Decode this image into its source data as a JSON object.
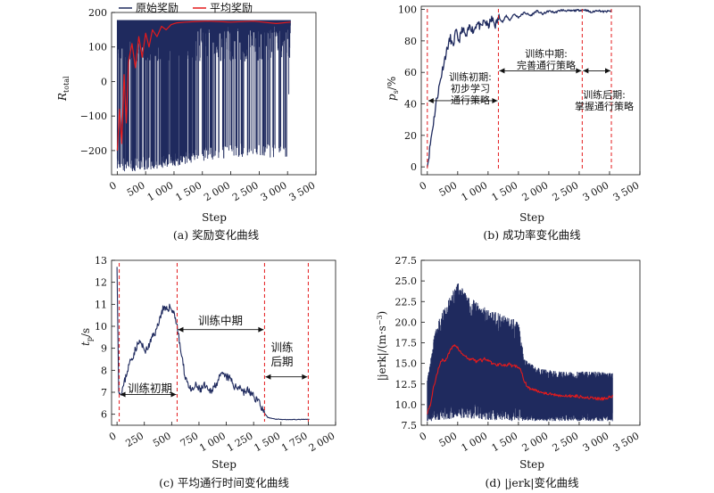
{
  "chart_data": [
    {
      "id": "a",
      "type": "line",
      "caption": "(a) 奖励变化曲线",
      "xlabel": "Step",
      "ylabel_main": "R",
      "ylabel_sub": "total",
      "xlim": [
        -100,
        3500
      ],
      "ylim": [
        -270,
        200
      ],
      "xticks": [
        0,
        500,
        1000,
        1500,
        2000,
        2500,
        3000,
        3500
      ],
      "xtick_labels": [
        "0",
        "500",
        "1 000",
        "1 500",
        "2 000",
        "2 500",
        "3 000",
        "3 500"
      ],
      "yticks": [
        -200,
        -100,
        0,
        100,
        200
      ],
      "ytick_labels": [
        "−200",
        "−100",
        "0",
        "100",
        "200"
      ],
      "legend_position": "top",
      "legend": [
        "原始奖励",
        "平均奖励"
      ],
      "series": [
        {
          "name": "原始奖励",
          "color": "#1f2a5e",
          "envelope": [
            [
              0,
              -260,
              178
            ],
            [
              300,
              -260,
              178
            ],
            [
              600,
              -255,
              178
            ],
            [
              900,
              -250,
              178
            ],
            [
              1200,
              -240,
              178
            ],
            [
              1500,
              -230,
              178
            ],
            [
              2000,
              -220,
              178
            ],
            [
              2500,
              -220,
              178
            ],
            [
              3000,
              -220,
              178
            ],
            [
              3050,
              150,
              178
            ]
          ]
        },
        {
          "name": "平均奖励",
          "color": "#e41a1c",
          "points": [
            [
              0,
              -200
            ],
            [
              40,
              -80
            ],
            [
              80,
              -180
            ],
            [
              120,
              20
            ],
            [
              160,
              -120
            ],
            [
              200,
              60
            ],
            [
              260,
              110
            ],
            [
              320,
              40
            ],
            [
              380,
              130
            ],
            [
              440,
              70
            ],
            [
              500,
              140
            ],
            [
              560,
              100
            ],
            [
              620,
              150
            ],
            [
              700,
              130
            ],
            [
              780,
              160
            ],
            [
              860,
              150
            ],
            [
              950,
              165
            ],
            [
              1050,
              170
            ],
            [
              1200,
              172
            ],
            [
              1400,
              174
            ],
            [
              1600,
              175
            ],
            [
              2000,
              172
            ],
            [
              2400,
              175
            ],
            [
              2800,
              168
            ],
            [
              3050,
              172
            ]
          ]
        }
      ]
    },
    {
      "id": "b",
      "type": "line",
      "caption": "(b) 成功率变化曲线",
      "xlabel": "Step",
      "ylabel_main": "p",
      "ylabel_sub": "s",
      "ylabel_unit": "/%",
      "xlim": [
        -100,
        3500
      ],
      "ylim": [
        -5,
        102
      ],
      "xticks": [
        0,
        500,
        1000,
        1500,
        2000,
        2500,
        3000,
        3500
      ],
      "xtick_labels": [
        "0",
        "500",
        "1 000",
        "1 500",
        "2 000",
        "2 500",
        "3 000",
        "3 500"
      ],
      "yticks": [
        0,
        20,
        40,
        60,
        80,
        100
      ],
      "ytick_labels": [
        "0",
        "20",
        "40",
        "60",
        "80",
        "100"
      ],
      "phase_lines": [
        0,
        1170,
        2550,
        3030
      ],
      "annotations": {
        "early": [
          "训练初期:",
          "初步学习",
          "通行策略"
        ],
        "mid": [
          "训练中期:",
          "完善通行策略"
        ],
        "late": [
          "训练后期:",
          "掌握通行策略"
        ]
      },
      "series": [
        {
          "name": "",
          "color": "#1f2a5e",
          "points": [
            [
              0,
              0
            ],
            [
              30,
              8
            ],
            [
              60,
              18
            ],
            [
              100,
              28
            ],
            [
              150,
              42
            ],
            [
              200,
              52
            ],
            [
              260,
              64
            ],
            [
              320,
              74
            ],
            [
              380,
              82
            ],
            [
              420,
              76
            ],
            [
              470,
              86
            ],
            [
              520,
              80
            ],
            [
              580,
              88
            ],
            [
              640,
              82
            ],
            [
              700,
              90
            ],
            [
              760,
              86
            ],
            [
              820,
              92
            ],
            [
              880,
              88
            ],
            [
              940,
              93
            ],
            [
              1000,
              89
            ],
            [
              1060,
              94
            ],
            [
              1120,
              90
            ],
            [
              1180,
              95
            ],
            [
              1240,
              92
            ],
            [
              1300,
              96
            ],
            [
              1360,
              93
            ],
            [
              1420,
              97
            ],
            [
              1500,
              95
            ],
            [
              1600,
              98
            ],
            [
              1700,
              96
            ],
            [
              1800,
              99
            ],
            [
              1900,
              97
            ],
            [
              2000,
              99
            ],
            [
              2100,
              98
            ],
            [
              2200,
              99.5
            ],
            [
              2350,
              99
            ],
            [
              2500,
              99.5
            ],
            [
              2600,
              99.8
            ],
            [
              2700,
              98
            ],
            [
              2800,
              99.5
            ],
            [
              2900,
              98.5
            ],
            [
              3030,
              99
            ]
          ]
        }
      ]
    },
    {
      "id": "c",
      "type": "line",
      "caption": "(c) 平均通行时间变化曲线",
      "xlabel": "Step",
      "ylabel_main": "t",
      "ylabel_sub": "p",
      "ylabel_unit": "/s",
      "xlim": [
        -50,
        2000
      ],
      "ylim": [
        5.5,
        13
      ],
      "xticks": [
        0,
        250,
        500,
        750,
        1000,
        1250,
        1500,
        1750,
        2000
      ],
      "xtick_labels": [
        "0",
        "250",
        "500",
        "750",
        "1 000",
        "1 250",
        "1 500",
        "1 750",
        "2 000"
      ],
      "yticks": [
        6,
        7,
        8,
        9,
        10,
        11,
        12,
        13
      ],
      "ytick_labels": [
        "6",
        "7",
        "8",
        "9",
        "10",
        "11",
        "12",
        "13"
      ],
      "phase_lines": [
        20,
        550,
        1350,
        1750
      ],
      "annotations": {
        "early": "训练初期",
        "mid": "训练中期",
        "late": [
          "训练",
          "后期"
        ]
      },
      "series": [
        {
          "name": "",
          "color": "#1f2a5e",
          "points": [
            [
              0,
              12.7
            ],
            [
              15,
              7.2
            ],
            [
              30,
              6.9
            ],
            [
              60,
              7.3
            ],
            [
              90,
              7.9
            ],
            [
              120,
              8.4
            ],
            [
              150,
              8.7
            ],
            [
              180,
              9.1
            ],
            [
              210,
              9.3
            ],
            [
              240,
              9.0
            ],
            [
              270,
              8.9
            ],
            [
              300,
              9.2
            ],
            [
              330,
              9.6
            ],
            [
              360,
              9.8
            ],
            [
              380,
              10.2
            ],
            [
              400,
              10.5
            ],
            [
              420,
              10.8
            ],
            [
              450,
              10.7
            ],
            [
              480,
              10.9
            ],
            [
              510,
              10.7
            ],
            [
              530,
              10.5
            ],
            [
              550,
              10.0
            ],
            [
              565,
              9.5
            ],
            [
              580,
              9.0
            ],
            [
              600,
              8.4
            ],
            [
              620,
              7.8
            ],
            [
              650,
              7.4
            ],
            [
              680,
              7.0
            ],
            [
              720,
              7.3
            ],
            [
              760,
              7.1
            ],
            [
              800,
              7.3
            ],
            [
              840,
              7.0
            ],
            [
              880,
              7.2
            ],
            [
              920,
              7.5
            ],
            [
              960,
              7.8
            ],
            [
              1000,
              7.7
            ],
            [
              1040,
              7.6
            ],
            [
              1080,
              7.2
            ],
            [
              1120,
              7.3
            ],
            [
              1160,
              7.0
            ],
            [
              1200,
              7.1
            ],
            [
              1250,
              6.8
            ],
            [
              1300,
              6.6
            ],
            [
              1340,
              6.1
            ],
            [
              1380,
              5.85
            ],
            [
              1450,
              5.78
            ],
            [
              1550,
              5.76
            ],
            [
              1650,
              5.76
            ],
            [
              1760,
              5.77
            ]
          ]
        }
      ]
    },
    {
      "id": "d",
      "type": "line",
      "caption": "(d) |jerk|变化曲线",
      "xlabel": "Step",
      "ylabel_main": "|jerk|/(m·s",
      "ylabel_sup": "−3",
      "ylabel_end": ")",
      "xlim": [
        -100,
        3500
      ],
      "ylim": [
        7.5,
        27.5
      ],
      "xticks": [
        0,
        500,
        1000,
        1500,
        2000,
        2500,
        3000,
        3500
      ],
      "xtick_labels": [
        "0",
        "500",
        "1 000",
        "1 500",
        "2 000",
        "2 500",
        "3 000",
        "3 500"
      ],
      "yticks": [
        7.5,
        10.0,
        12.5,
        15.0,
        17.5,
        20.0,
        22.5,
        25.0,
        27.5
      ],
      "ytick_labels": [
        "7.5",
        "10.0",
        "12.5",
        "15.0",
        "17.5",
        "20.0",
        "22.5",
        "25.0",
        "27.5"
      ],
      "series": [
        {
          "name": "",
          "color": "#1f2a5e",
          "envelope": [
            [
              0,
              8.0,
              13.0
            ],
            [
              100,
              8.0,
              18.0
            ],
            [
              200,
              8.0,
              20.5
            ],
            [
              300,
              8.2,
              22.0
            ],
            [
              400,
              8.2,
              23.5
            ],
            [
              500,
              8.4,
              24.8
            ],
            [
              600,
              8.3,
              24.0
            ],
            [
              700,
              8.2,
              23.0
            ],
            [
              800,
              8.3,
              22.5
            ],
            [
              900,
              8.2,
              22.0
            ],
            [
              1000,
              8.1,
              21.5
            ],
            [
              1200,
              8.1,
              21.0
            ],
            [
              1400,
              8.0,
              20.5
            ],
            [
              1500,
              8.0,
              20.0
            ],
            [
              1600,
              8.0,
              15.5
            ],
            [
              1800,
              8.0,
              14.5
            ],
            [
              2000,
              8.0,
              14.2
            ],
            [
              2200,
              8.0,
              14.0
            ],
            [
              2500,
              8.0,
              14.0
            ],
            [
              2800,
              8.0,
              14.0
            ],
            [
              3050,
              8.0,
              13.8
            ]
          ]
        },
        {
          "name": "",
          "color": "#e41a1c",
          "points": [
            [
              0,
              9.0
            ],
            [
              50,
              10.0
            ],
            [
              100,
              12.0
            ],
            [
              150,
              13.5
            ],
            [
              200,
              14.8
            ],
            [
              250,
              15.5
            ],
            [
              300,
              15.3
            ],
            [
              350,
              16.2
            ],
            [
              400,
              16.8
            ],
            [
              450,
              17.3
            ],
            [
              500,
              16.9
            ],
            [
              550,
              16.3
            ],
            [
              600,
              16.0
            ],
            [
              650,
              15.7
            ],
            [
              700,
              15.4
            ],
            [
              750,
              15.6
            ],
            [
              800,
              15.2
            ],
            [
              850,
              15.5
            ],
            [
              900,
              15.3
            ],
            [
              950,
              15.6
            ],
            [
              1000,
              15.4
            ],
            [
              1050,
              15.1
            ],
            [
              1100,
              14.9
            ],
            [
              1150,
              14.8
            ],
            [
              1200,
              15.0
            ],
            [
              1250,
              14.8
            ],
            [
              1300,
              14.7
            ],
            [
              1350,
              14.9
            ],
            [
              1400,
              14.6
            ],
            [
              1450,
              14.7
            ],
            [
              1500,
              14.5
            ],
            [
              1550,
              14.0
            ],
            [
              1600,
              12.8
            ],
            [
              1650,
              12.2
            ],
            [
              1700,
              11.9
            ],
            [
              1800,
              11.7
            ],
            [
              1900,
              11.5
            ],
            [
              2000,
              11.3
            ],
            [
              2100,
              11.2
            ],
            [
              2200,
              11.1
            ],
            [
              2300,
              11.0
            ],
            [
              2400,
              11.1
            ],
            [
              2500,
              11.0
            ],
            [
              2600,
              10.9
            ],
            [
              2700,
              10.8
            ],
            [
              2800,
              10.7
            ],
            [
              2900,
              10.7
            ],
            [
              3000,
              10.9
            ],
            [
              3050,
              11.0
            ]
          ]
        }
      ]
    }
  ]
}
